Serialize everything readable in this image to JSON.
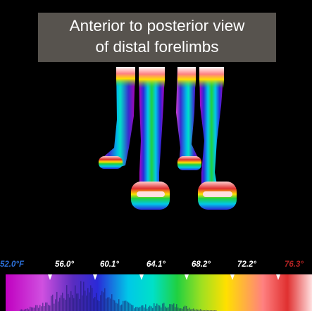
{
  "title": {
    "line1": "Anterior to posterior view",
    "line2": "of distal forelimbs"
  },
  "scale": {
    "labels": [
      "52.0°F",
      "56.0°",
      "60.1°",
      "64.1°",
      "68.2°",
      "72.2°",
      "76.3°"
    ],
    "min_color": "#2c6fd6",
    "max_color": "#b22222",
    "mid_color": "#ffffff"
  },
  "palette": [
    "#c000c0",
    "#d050e0",
    "#5a2cc0",
    "#2a2ad8",
    "#00c8e8",
    "#00e0c8",
    "#20d040",
    "#a0e020",
    "#ffe000",
    "#ff8080",
    "#e03030",
    "#ffe0e0"
  ]
}
